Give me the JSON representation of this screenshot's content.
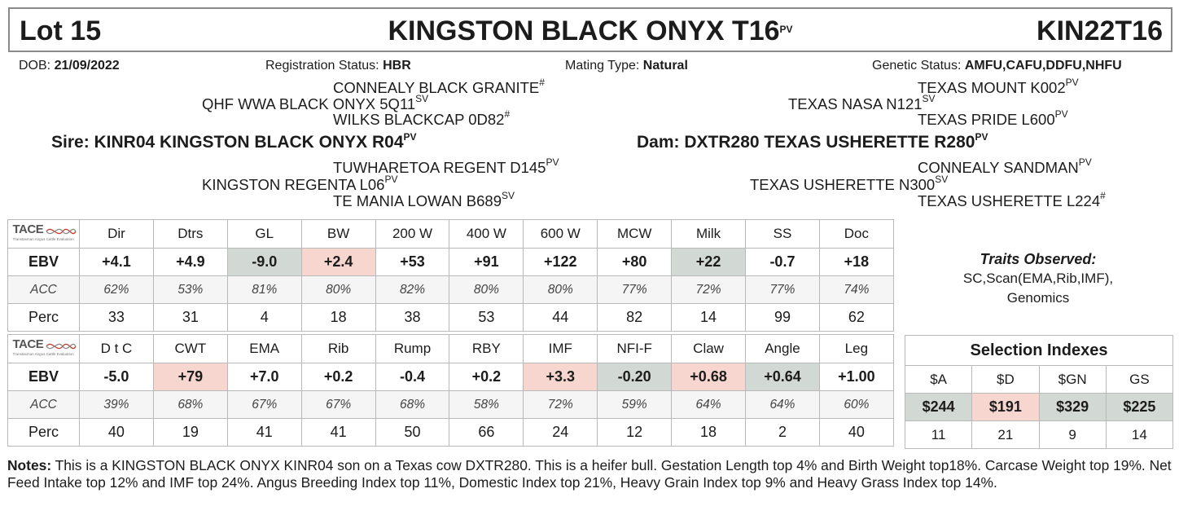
{
  "header": {
    "lot": "Lot 15",
    "name": "KINGSTON BLACK ONYX T16",
    "name_sup": "PV",
    "ident": "KIN22T16"
  },
  "info": {
    "dob_label": "DOB:",
    "dob": "21/09/2022",
    "reg_label": "Registration Status:",
    "reg": "HBR",
    "mating_label": "Mating Type:",
    "mating": "Natural",
    "genetic_label": "Genetic Status:",
    "genetic": "AMFU,CAFU,DDFU,NHFU"
  },
  "pedigree": {
    "sire_sire_sire": {
      "name": "CONNEALY BLACK GRANITE",
      "sup": "#"
    },
    "sire_sire": {
      "name": "QHF WWA BLACK ONYX 5Q11",
      "sup": "SV"
    },
    "sire_sire_dam": {
      "name": "WILKS BLACKCAP 0D82",
      "sup": "#"
    },
    "sire": {
      "label": "Sire: KINR04 KINGSTON BLACK ONYX R04",
      "sup": "PV"
    },
    "sire_dam_sire": {
      "name": "TUWHARETOA REGENT D145",
      "sup": "PV"
    },
    "sire_dam": {
      "name": "KINGSTON REGENTA L06",
      "sup": "PV"
    },
    "sire_dam_dam": {
      "name": "TE MANIA LOWAN B689",
      "sup": "SV"
    },
    "dam_sire_sire": {
      "name": "TEXAS MOUNT K002",
      "sup": "PV"
    },
    "dam_sire": {
      "name": "TEXAS NASA N121",
      "sup": "SV"
    },
    "dam_sire_dam": {
      "name": "TEXAS PRIDE L600",
      "sup": "PV"
    },
    "dam": {
      "label": "Dam: DXTR280 TEXAS USHERETTE R280",
      "sup": "PV"
    },
    "dam_dam_sire": {
      "name": "CONNEALY SANDMAN",
      "sup": "PV"
    },
    "dam_dam": {
      "name": "TEXAS USHERETTE N300",
      "sup": "SV"
    },
    "dam_dam_dam": {
      "name": "TEXAS USHERETTE L224",
      "sup": "#"
    }
  },
  "tace_logo": {
    "word": "TACE",
    "sub": "Transtasman Angus Cattle Evaluation"
  },
  "row_labels": {
    "ebv": "EBV",
    "acc": "ACC",
    "perc": "Perc"
  },
  "table1": {
    "headers": [
      "Dir",
      "Dtrs",
      "GL",
      "BW",
      "200 W",
      "400 W",
      "600 W",
      "MCW",
      "Milk",
      "SS",
      "Doc"
    ],
    "ebv": [
      "+4.1",
      "+4.9",
      "-9.0",
      "+2.4",
      "+53",
      "+91",
      "+122",
      "+80",
      "+22",
      "-0.7",
      "+18"
    ],
    "acc": [
      "62%",
      "53%",
      "81%",
      "80%",
      "82%",
      "80%",
      "80%",
      "77%",
      "72%",
      "77%",
      "74%"
    ],
    "perc": [
      "33",
      "31",
      "4",
      "18",
      "38",
      "53",
      "44",
      "82",
      "14",
      "99",
      "62"
    ],
    "highlight": [
      "",
      "",
      "good",
      "bad",
      "",
      "",
      "",
      "",
      "good",
      "",
      ""
    ]
  },
  "table2": {
    "headers": [
      "D t C",
      "CWT",
      "EMA",
      "Rib",
      "Rump",
      "RBY",
      "IMF",
      "NFI-F",
      "Claw",
      "Angle",
      "Leg"
    ],
    "ebv": [
      "-5.0",
      "+79",
      "+7.0",
      "+0.2",
      "-0.4",
      "+0.2",
      "+3.3",
      "-0.20",
      "+0.68",
      "+0.64",
      "+1.00"
    ],
    "acc": [
      "39%",
      "68%",
      "67%",
      "67%",
      "68%",
      "58%",
      "72%",
      "59%",
      "64%",
      "64%",
      "60%"
    ],
    "perc": [
      "40",
      "19",
      "41",
      "41",
      "50",
      "66",
      "24",
      "12",
      "18",
      "2",
      "40"
    ],
    "highlight": [
      "",
      "bad",
      "",
      "",
      "",
      "",
      "bad",
      "good",
      "bad",
      "good",
      ""
    ]
  },
  "traits": {
    "title": "Traits Observed:",
    "line1": "SC,Scan(EMA,Rib,IMF),",
    "line2": "Genomics"
  },
  "selection": {
    "title": "Selection Indexes",
    "headers": [
      "$A",
      "$D",
      "$GN",
      "GS"
    ],
    "values": [
      "$244",
      "$191",
      "$329",
      "$225"
    ],
    "perc": [
      "11",
      "21",
      "9",
      "14"
    ],
    "highlight": [
      "good",
      "bad",
      "good",
      "good"
    ]
  },
  "notes": {
    "label": "Notes:",
    "text": "This is a KINGSTON BLACK ONYX KINR04 son on a Texas cow DXTR280. This is a heifer bull. Gestation Length top 4% and Birth Weight top18%. Carcase Weight top 19%. Net Feed Intake top 12% and IMF top 24%. Angus Breeding Index top 11%, Domestic Index top 21%, Heavy Grain Index top 9% and Heavy Grass Index top 14%."
  },
  "colors": {
    "good": "#d2d9d4",
    "bad": "#f6d6cf",
    "border": "#8a8a8a"
  }
}
